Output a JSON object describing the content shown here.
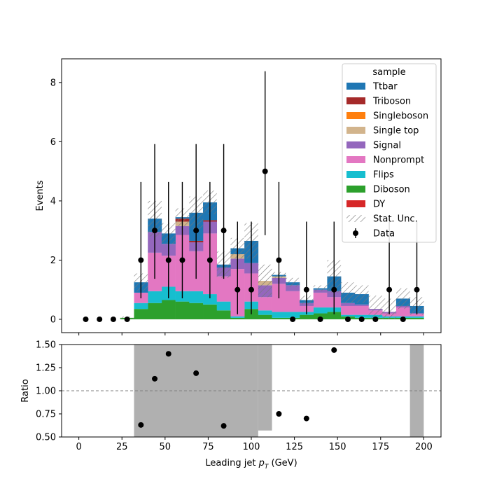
{
  "colors": {
    "Ttbar": "#1f77b4",
    "Triboson": "#a52a2a",
    "Singleboson": "#ff7f0e",
    "Single top": "#d2b48c",
    "Signal": "#9467bd",
    "Nonprompt": "#e377c2",
    "Flips": "#17becf",
    "Diboson": "#2ca02c",
    "DY": "#d62728",
    "band": "#b0b0b0",
    "ref_line": "#808080"
  },
  "chart_data": [
    {
      "type": "bar",
      "stacked": true,
      "xlabel": "",
      "ylabel": "Events",
      "xlim": [
        -10,
        210
      ],
      "ylim": [
        -0.45,
        8.8
      ],
      "yticks": [
        0,
        2,
        4,
        6,
        8
      ],
      "legend": {
        "title": "sample",
        "placement": "top-right",
        "entries": [
          "Ttbar",
          "Triboson",
          "Singleboson",
          "Single top",
          "Signal",
          "Nonprompt",
          "Flips",
          "Diboson",
          "DY",
          "Stat. Unc.",
          "Data"
        ]
      },
      "bin_edges": [
        0,
        8,
        16,
        24,
        32,
        40,
        48,
        56,
        64,
        72,
        80,
        88,
        96,
        104,
        112,
        120,
        128,
        136,
        144,
        152,
        160,
        168,
        176,
        184,
        192,
        200
      ],
      "series": [
        {
          "name": "Diboson",
          "values": [
            0,
            0,
            0,
            0.05,
            0.35,
            0.55,
            0.65,
            0.6,
            0.55,
            0.5,
            0.3,
            0.05,
            0.35,
            0.15,
            0.05,
            0.05,
            0.15,
            0.2,
            0.25,
            0.1,
            0.05,
            0.05,
            0.05,
            0.05,
            0.05
          ]
        },
        {
          "name": "Flips",
          "values": [
            0,
            0,
            0,
            0,
            0.2,
            0.4,
            0.45,
            0.35,
            0.4,
            0.35,
            0.3,
            0.05,
            0.25,
            0.15,
            0.2,
            0.2,
            0.1,
            0.2,
            0.15,
            0.05,
            0.1,
            0.1,
            0.05,
            0.05,
            0.05
          ]
        },
        {
          "name": "Nonprompt",
          "values": [
            0,
            0,
            0,
            0,
            0.35,
            1.3,
            1.05,
            1.9,
            1.35,
            2.05,
            0.85,
            1.6,
            0.95,
            0.45,
            0.95,
            0.7,
            0.2,
            0.5,
            0.35,
            0.3,
            0.3,
            0.15,
            0.1,
            0.3,
            0.1
          ]
        },
        {
          "name": "Signal",
          "values": [
            0,
            0,
            0,
            0,
            0,
            0.7,
            0.4,
            0.3,
            0.3,
            0.4,
            0.3,
            0.35,
            0.35,
            0.4,
            0.2,
            0.2,
            0.1,
            0.1,
            0.2,
            0.1,
            0.05,
            0.05,
            0.05,
            0.05,
            0
          ]
        },
        {
          "name": "Single top",
          "values": [
            0,
            0,
            0,
            0,
            0,
            0,
            0,
            0.15,
            0,
            0,
            0,
            0.15,
            0,
            0.15,
            0.05,
            0,
            0,
            0,
            0,
            0,
            0,
            0,
            0,
            0,
            0
          ]
        },
        {
          "name": "Singleboson",
          "values": [
            0,
            0,
            0,
            0,
            0,
            0,
            0,
            0,
            0,
            0,
            0,
            0,
            0,
            0,
            0,
            0,
            0,
            0,
            0,
            0,
            0,
            0,
            0,
            0,
            0
          ]
        },
        {
          "name": "Triboson",
          "values": [
            0,
            0,
            0,
            0,
            0,
            0,
            0,
            0.1,
            0.05,
            0.05,
            0,
            0,
            0,
            0,
            0,
            0,
            0,
            0,
            0,
            0,
            0,
            0,
            0,
            0,
            0
          ]
        },
        {
          "name": "Ttbar",
          "values": [
            0,
            0,
            0,
            0,
            0.35,
            0.45,
            0.35,
            0.05,
            0.95,
            0.6,
            0.1,
            0.2,
            0.75,
            0,
            0.05,
            0.1,
            0.1,
            0.05,
            0.5,
            0.35,
            0.35,
            0,
            0,
            0.25,
            0.25
          ]
        },
        {
          "name": "DY",
          "values": [
            0,
            0,
            0,
            0,
            0,
            0,
            0,
            0,
            0,
            0,
            0,
            0,
            0,
            0,
            0,
            0,
            0,
            0,
            0,
            0,
            0,
            0,
            0,
            0,
            0
          ]
        }
      ],
      "stat_unc_half": [
        0,
        0,
        0,
        0.05,
        0.3,
        0.6,
        0.35,
        0.3,
        0.55,
        0.4,
        0.45,
        0.35,
        0.6,
        0.55,
        0.1,
        0.15,
        0.15,
        0.1,
        0.55,
        0.35,
        0.3,
        0.45,
        0.45,
        0.35,
        0.3
      ],
      "data": {
        "name": "Data",
        "x": [
          4,
          12,
          20,
          28,
          36,
          44,
          52,
          60,
          68,
          76,
          84,
          92,
          100,
          108,
          116,
          124,
          132,
          140,
          148,
          156,
          164,
          172,
          180,
          188,
          196
        ],
        "y": [
          0,
          0,
          0,
          0,
          2,
          3,
          2,
          2,
          3,
          2,
          3,
          1,
          1,
          5,
          2,
          0,
          1,
          0,
          1,
          0,
          0,
          0,
          1,
          0,
          1
        ],
        "err_low": [
          0,
          0,
          0,
          0,
          1.29,
          1.63,
          1.29,
          1.29,
          1.63,
          1.29,
          1.63,
          0.83,
          0.83,
          2.16,
          1.29,
          0,
          0.83,
          0,
          0.83,
          0,
          0,
          0,
          0.83,
          0,
          0.83
        ],
        "err_high": [
          0,
          0,
          0,
          0,
          2.64,
          2.92,
          2.64,
          2.64,
          2.92,
          2.64,
          2.92,
          2.3,
          2.3,
          3.38,
          2.64,
          0,
          2.3,
          0,
          2.3,
          0,
          0,
          0,
          2.3,
          0,
          2.3
        ]
      }
    },
    {
      "type": "scatter",
      "xlabel": "Leading jet  p_T (GeV)",
      "xlabel_parts": {
        "prefix": "Leading jet  ",
        "var": "p",
        "sub": "T",
        "suffix": " (GeV)"
      },
      "ylabel": "Ratio",
      "xlim": [
        -10,
        210
      ],
      "ylim": [
        0.5,
        1.5
      ],
      "xticks": [
        0,
        25,
        50,
        75,
        100,
        125,
        150,
        175,
        200
      ],
      "yticks": [
        0.5,
        0.75,
        1.0,
        1.25,
        1.5
      ],
      "ytick_labels": [
        "0.50",
        "0.75",
        "1.00",
        "1.25",
        "1.50"
      ],
      "reference_line": 1.0,
      "unc_band": [
        {
          "x0": 32,
          "x1": 104,
          "low": 0.0,
          "high": 2.0
        },
        {
          "x0": 104,
          "x1": 112,
          "low": 0.57,
          "high": 2.0
        },
        {
          "x0": 192,
          "x1": 200,
          "low": 0.0,
          "high": 2.0
        }
      ],
      "points": {
        "x": [
          36,
          44,
          52,
          68,
          84,
          116,
          132,
          148
        ],
        "y": [
          0.63,
          1.13,
          1.4,
          1.19,
          0.62,
          0.75,
          0.7,
          1.44
        ]
      }
    }
  ]
}
